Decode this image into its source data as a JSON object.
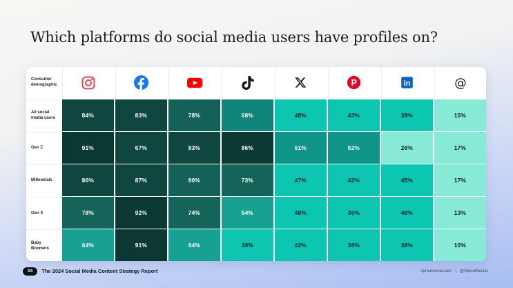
{
  "slide": {
    "title": "Which platforms do social media users have profiles on?",
    "footer": {
      "page_number": "04",
      "report_title": "The 2024 Social Media Content Strategy Report",
      "website": "sproutsocial.com",
      "separator": "|",
      "social_handle": "@SproutSocial"
    }
  },
  "table": {
    "corner_label": "Consumer demographic",
    "platforms": [
      {
        "name": "Instagram",
        "icon": "instagram-icon",
        "brand_color": "#E8435A"
      },
      {
        "name": "Facebook",
        "icon": "facebook-icon",
        "brand_color": "#1877F2"
      },
      {
        "name": "YouTube",
        "icon": "youtube-icon",
        "brand_color": "#FF0000"
      },
      {
        "name": "TikTok",
        "icon": "tiktok-icon",
        "brand_color": "#121212"
      },
      {
        "name": "X (Twitter)",
        "icon": "x-icon",
        "brand_color": "#0F1419"
      },
      {
        "name": "Pinterest",
        "icon": "pinterest-icon",
        "brand_color": "#E60023"
      },
      {
        "name": "LinkedIn",
        "icon": "linkedin-icon",
        "brand_color": "#0A66C2"
      },
      {
        "name": "Threads",
        "icon": "threads-icon",
        "brand_color": "#101010"
      }
    ]
  },
  "chart_data": {
    "type": "heatmap",
    "title": "Which platforms do social media users have profiles on?",
    "unit": "%",
    "columns": [
      "Instagram",
      "Facebook",
      "YouTube",
      "TikTok",
      "X (Twitter)",
      "Pinterest",
      "LinkedIn",
      "Threads"
    ],
    "rows": [
      {
        "label": "All social media users",
        "values": [
          84,
          83,
          78,
          68,
          48,
          43,
          39,
          15
        ],
        "shades": [
          "d1",
          "d1",
          "d2",
          "m1",
          "t",
          "t",
          "t",
          "l"
        ]
      },
      {
        "label": "Gen Z",
        "values": [
          91,
          67,
          83,
          86,
          51,
          52,
          26,
          17
        ],
        "shades": [
          "d0",
          "d1",
          "d1",
          "d0",
          "m2",
          "m2",
          "l",
          "l"
        ]
      },
      {
        "label": "Millennials",
        "values": [
          86,
          87,
          80,
          73,
          47,
          42,
          45,
          17
        ],
        "shades": [
          "d1",
          "d1",
          "d2",
          "m0",
          "t",
          "t",
          "t",
          "l"
        ]
      },
      {
        "label": "Gen X",
        "values": [
          78,
          92,
          74,
          54,
          48,
          36,
          46,
          13
        ],
        "shades": [
          "m0",
          "d0",
          "m0",
          "m3",
          "t",
          "t",
          "t",
          "l"
        ]
      },
      {
        "label": "Baby Boomers",
        "values": [
          64,
          91,
          64,
          38,
          42,
          38,
          38,
          10
        ],
        "shades": [
          "m3",
          "d0",
          "m3",
          "t",
          "t",
          "t",
          "t",
          "l"
        ]
      }
    ],
    "palette": {
      "d0": "#0B3832",
      "d1": "#0F463F",
      "d2": "#14615A",
      "m0": "#156459",
      "m1": "#0F8478",
      "m2": "#0F9488",
      "m3": "#16A193",
      "t": "#0DC6B2",
      "l": "#87EAD6"
    },
    "light_text_shades": [
      "d0",
      "d1",
      "d2",
      "m0",
      "m1",
      "m2",
      "m3"
    ],
    "text_colors": {
      "light": "#FFFFFF",
      "dark": "#0B1F1C"
    }
  }
}
